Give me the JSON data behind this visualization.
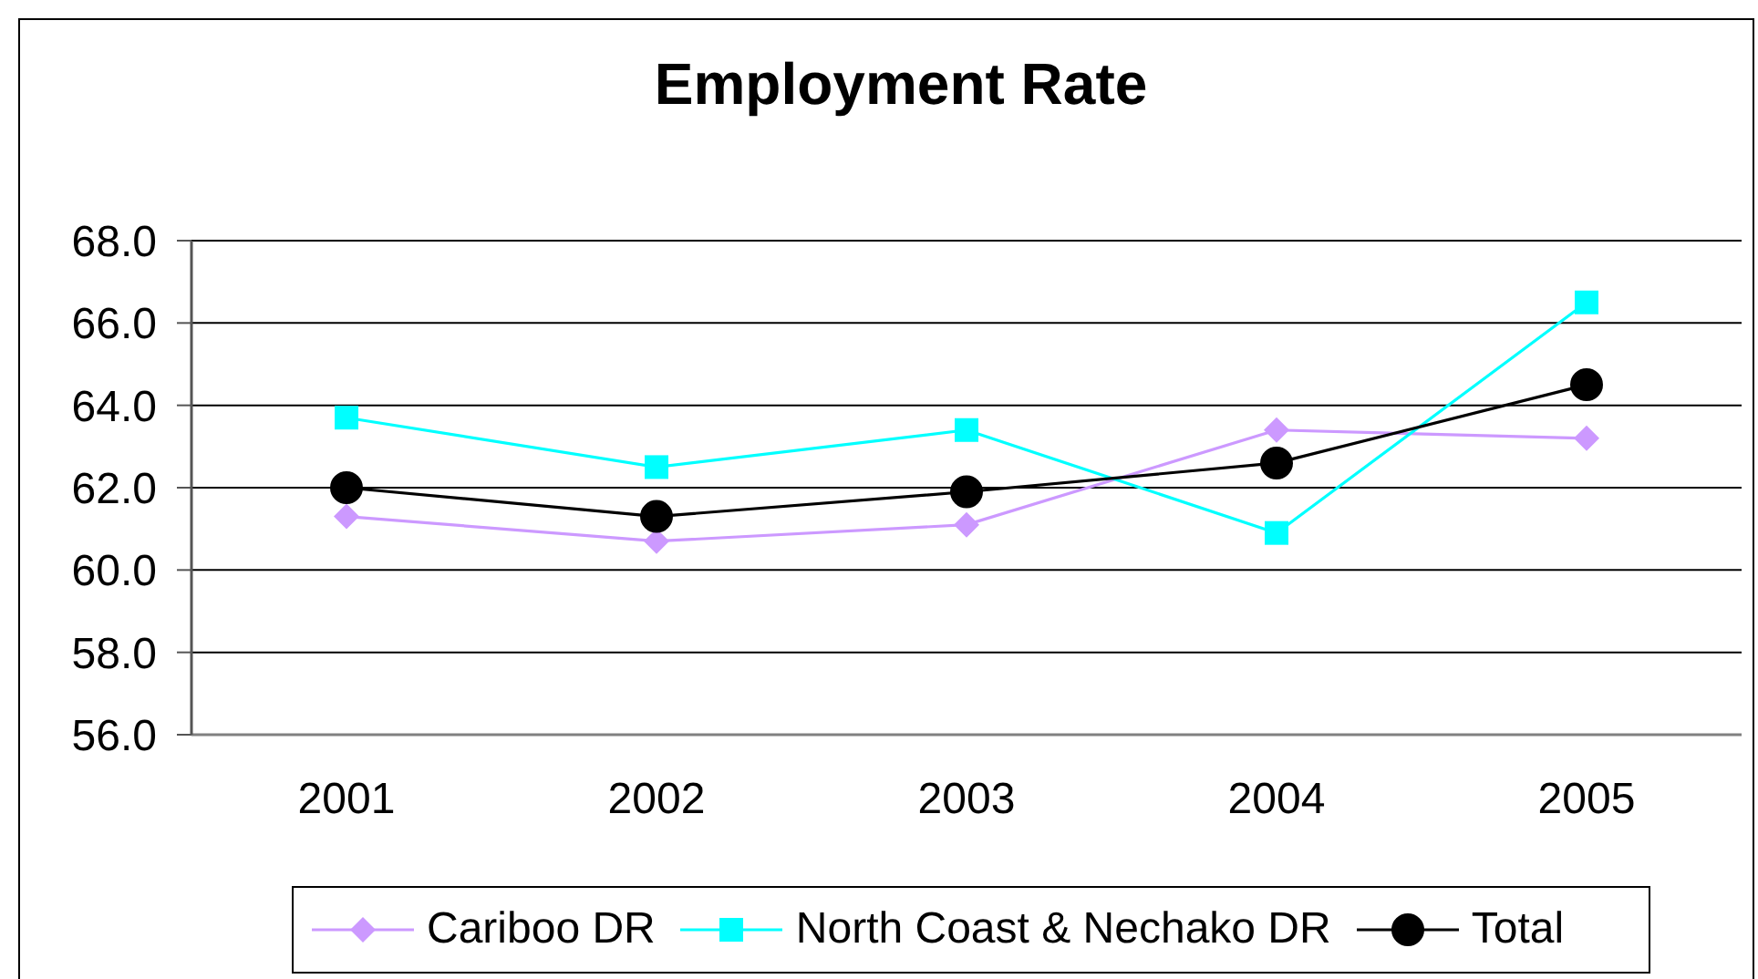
{
  "chart_data": {
    "type": "line",
    "title": "Employment Rate",
    "categories": [
      "2001",
      "2002",
      "2003",
      "2004",
      "2005"
    ],
    "series": [
      {
        "name": "Cariboo DR",
        "color": "#cc99ff",
        "marker": "diamond",
        "values": [
          61.3,
          60.7,
          61.1,
          63.4,
          63.2
        ]
      },
      {
        "name": "North Coast & Nechako DR",
        "color": "#00ffff",
        "marker": "square",
        "values": [
          63.7,
          62.5,
          63.4,
          60.9,
          66.5
        ]
      },
      {
        "name": "Total",
        "color": "#000000",
        "marker": "circle",
        "values": [
          62.0,
          61.3,
          61.9,
          62.6,
          64.5
        ]
      }
    ],
    "ylim": [
      56,
      68
    ],
    "yticks": [
      {
        "value": 56,
        "label": "56.0"
      },
      {
        "value": 58,
        "label": "58.0"
      },
      {
        "value": 60,
        "label": "60.0"
      },
      {
        "value": 62,
        "label": "62.0"
      },
      {
        "value": 64,
        "label": "64.0"
      },
      {
        "value": 66,
        "label": "66.0"
      },
      {
        "value": 68,
        "label": "68.0"
      }
    ],
    "grid": "y",
    "legend": "bottom"
  }
}
